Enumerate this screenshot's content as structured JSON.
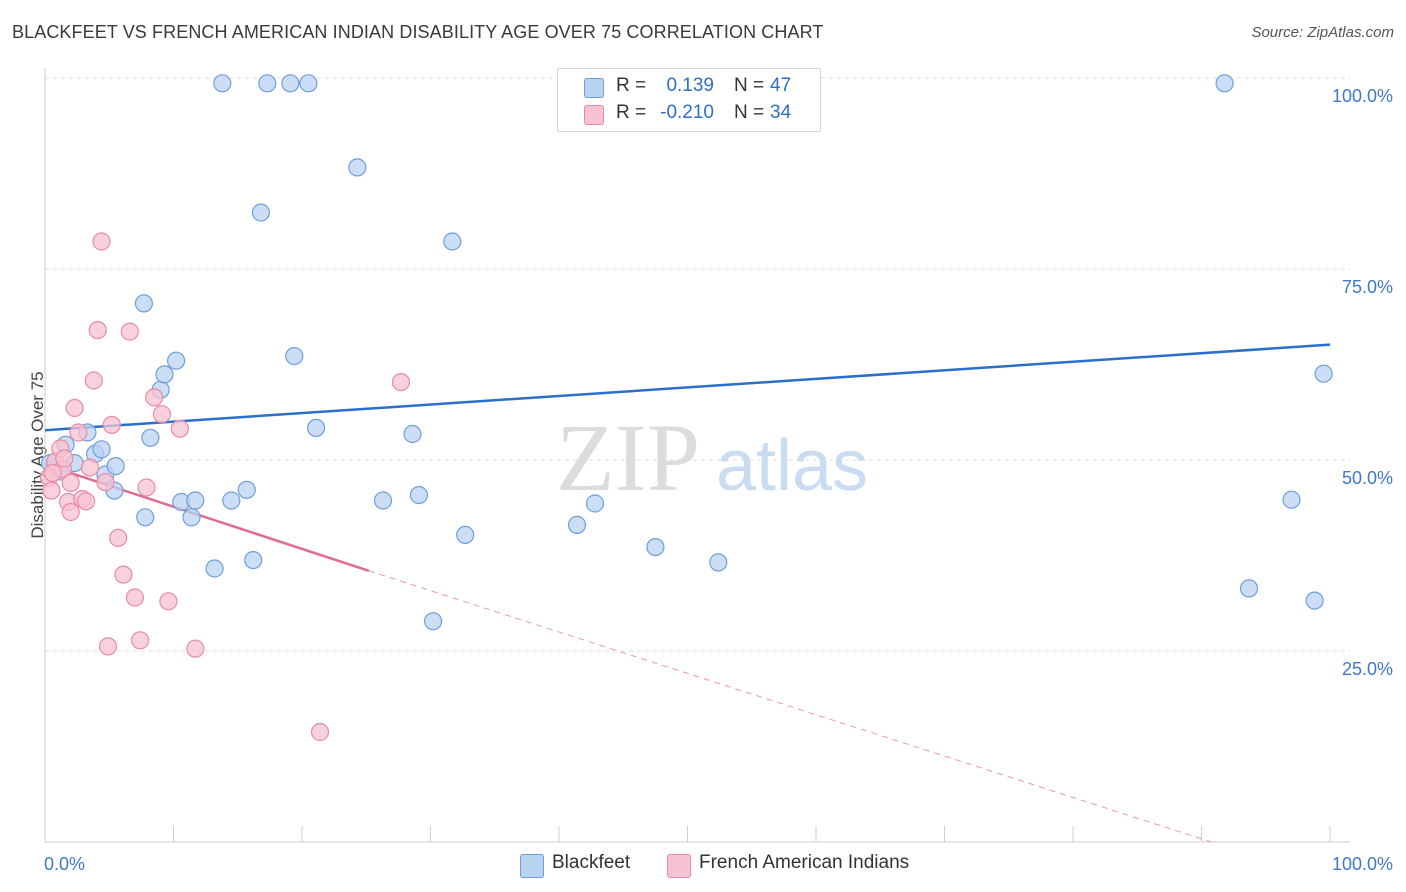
{
  "header": {
    "title": "BLACKFEET VS FRENCH AMERICAN INDIAN DISABILITY AGE OVER 75 CORRELATION CHART",
    "source": "Source: ZipAtlas.com"
  },
  "watermark": {
    "zip": "ZIP",
    "atlas": "atlas"
  },
  "legend": {
    "rows": [
      {
        "r_label": "R =",
        "r_value": "0.139",
        "n_label": "N =",
        "n_value": "47"
      },
      {
        "r_label": "R =",
        "r_value": "-0.210",
        "n_label": "N =",
        "n_value": "34"
      }
    ]
  },
  "colors": {
    "blackfeet_fill": "#b9d3f3",
    "blackfeet_stroke": "#6d9fdb",
    "blackfeet_line": "#2a6fc9",
    "french_fill": "#f7c2d1",
    "french_stroke": "#e98aa6",
    "french_line": "#e06b95",
    "tick_text": "#3f78c8"
  },
  "chart_data": {
    "type": "scatter",
    "title": "BLACKFEET VS FRENCH AMERICAN INDIAN DISABILITY AGE OVER 75 CORRELATION CHART",
    "xlabel": "",
    "ylabel": "Disability Age Over 75",
    "xlim": [
      0,
      100
    ],
    "ylim": [
      0,
      102
    ],
    "x_tick_labels": [
      "0.0%",
      "100.0%"
    ],
    "y_tick_labels": [
      "25.0%",
      "50.0%",
      "75.0%",
      "100.0%"
    ],
    "y_ticks": [
      25,
      50,
      75,
      100
    ],
    "grid": true,
    "legend_position": "top-center",
    "series": [
      {
        "name": "Blackfeet",
        "r": 0.139,
        "n": 47,
        "trend": {
          "x": [
            0,
            100
          ],
          "y": [
            53.9,
            65.1
          ]
        },
        "points": [
          [
            0.4,
            49.6
          ],
          [
            0.8,
            49.8
          ],
          [
            1.2,
            48.5
          ],
          [
            1.6,
            52.0
          ],
          [
            2.3,
            49.6
          ],
          [
            3.3,
            53.6
          ],
          [
            3.9,
            50.8
          ],
          [
            4.4,
            51.4
          ],
          [
            4.7,
            48.1
          ],
          [
            5.5,
            49.2
          ],
          [
            5.4,
            46.0
          ],
          [
            7.7,
            70.5
          ],
          [
            7.8,
            42.5
          ],
          [
            8.2,
            52.9
          ],
          [
            9.0,
            59.2
          ],
          [
            9.3,
            61.2
          ],
          [
            10.2,
            63.0
          ],
          [
            10.6,
            44.5
          ],
          [
            11.4,
            42.5
          ],
          [
            11.7,
            44.7
          ],
          [
            13.2,
            35.8
          ],
          [
            13.8,
            99.3
          ],
          [
            14.5,
            44.7
          ],
          [
            15.7,
            46.1
          ],
          [
            16.2,
            36.9
          ],
          [
            16.8,
            82.4
          ],
          [
            17.3,
            99.3
          ],
          [
            19.1,
            99.3
          ],
          [
            19.4,
            63.6
          ],
          [
            20.5,
            99.3
          ],
          [
            21.1,
            54.2
          ],
          [
            24.3,
            88.3
          ],
          [
            26.3,
            44.7
          ],
          [
            28.6,
            53.4
          ],
          [
            29.1,
            45.4
          ],
          [
            30.2,
            28.9
          ],
          [
            31.7,
            78.6
          ],
          [
            32.7,
            40.2
          ],
          [
            41.4,
            41.5
          ],
          [
            42.8,
            44.3
          ],
          [
            47.5,
            38.6
          ],
          [
            52.4,
            36.6
          ],
          [
            93.7,
            33.2
          ],
          [
            97.0,
            44.8
          ],
          [
            98.8,
            31.6
          ],
          [
            99.5,
            61.3
          ],
          [
            91.8,
            99.3
          ]
        ]
      },
      {
        "name": "French American Indians",
        "r": -0.21,
        "n": 34,
        "trend": {
          "x": [
            0,
            25.2
          ],
          "y": [
            49.4,
            35.5
          ],
          "dashed_to": {
            "x": 100,
            "y": -5.0
          }
        },
        "points": [
          [
            0.3,
            47.7
          ],
          [
            0.5,
            46.0
          ],
          [
            0.8,
            49.8
          ],
          [
            1.2,
            51.5
          ],
          [
            1.4,
            48.8
          ],
          [
            1.5,
            50.2
          ],
          [
            1.8,
            44.5
          ],
          [
            2.0,
            43.2
          ],
          [
            2.3,
            56.8
          ],
          [
            2.6,
            53.6
          ],
          [
            2.9,
            44.9
          ],
          [
            3.2,
            44.6
          ],
          [
            3.5,
            49.0
          ],
          [
            3.8,
            60.4
          ],
          [
            4.1,
            67.0
          ],
          [
            4.4,
            78.6
          ],
          [
            4.7,
            47.1
          ],
          [
            4.9,
            25.6
          ],
          [
            5.2,
            54.6
          ],
          [
            5.7,
            39.8
          ],
          [
            6.1,
            35.0
          ],
          [
            6.6,
            66.8
          ],
          [
            7.0,
            32.0
          ],
          [
            7.4,
            26.4
          ],
          [
            7.9,
            46.4
          ],
          [
            8.5,
            58.2
          ],
          [
            9.1,
            56.0
          ],
          [
            9.6,
            31.5
          ],
          [
            10.5,
            54.1
          ],
          [
            11.7,
            25.3
          ],
          [
            21.4,
            14.4
          ],
          [
            27.7,
            60.2
          ],
          [
            0.6,
            48.3
          ],
          [
            2.0,
            47.0
          ]
        ]
      }
    ]
  },
  "bottom_legend": {
    "items": [
      {
        "label": "Blackfeet"
      },
      {
        "label": "French American Indians"
      }
    ]
  }
}
